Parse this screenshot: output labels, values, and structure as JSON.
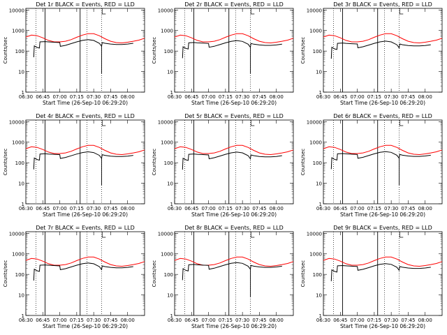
{
  "figure": {
    "title_template": "Det {n}r BLACK = Events, RED = LLD",
    "detectors": [
      "1",
      "2",
      "3",
      "4",
      "5",
      "6",
      "7",
      "8",
      "9"
    ],
    "xlabel": "Start Time (26-Sep-10 06:29:20)",
    "ylabel": "Counts/sec"
  },
  "chart_data": {
    "type": "line",
    "panels": 9,
    "title_template": "Det {n}r BLACK = Events, RED = LLD",
    "xlabel": "Start Time (26-Sep-10 06:29:20)",
    "ylabel": "Counts/sec",
    "yscale": "log",
    "ylim": [
      1,
      12000
    ],
    "xlim": [
      0,
      105
    ],
    "x_units": "minutes after 06:30",
    "xticks": [
      0,
      15,
      30,
      45,
      60,
      75,
      90
    ],
    "xtick_labels": [
      "06:30",
      "06:45",
      "07:00",
      "07:15",
      "07:30",
      "07:45",
      "08:00"
    ],
    "yticks": [
      1,
      10,
      100,
      1000,
      10000
    ],
    "ytick_labels": [
      "1",
      "10",
      "100",
      "1000",
      "10000"
    ],
    "vlines_solid": [
      17,
      48
    ],
    "vlines_dotted": [
      9,
      54,
      67
    ],
    "series": [
      {
        "name": "LLD",
        "color": "#ff0000",
        "x": [
          0,
          5,
          10,
          15,
          20,
          25,
          30,
          35,
          40,
          45,
          50,
          55,
          60,
          65,
          70,
          75,
          80,
          85,
          90,
          95,
          100,
          105
        ],
        "values": [
          480,
          600,
          560,
          440,
          330,
          280,
          280,
          300,
          360,
          470,
          600,
          700,
          700,
          560,
          400,
          300,
          260,
          250,
          270,
          300,
          340,
          420
        ]
      },
      {
        "name": "Events",
        "color": "#000000",
        "x": [
          7,
          7.5,
          9,
          10,
          12,
          12.5,
          17,
          20,
          25,
          30,
          30.5,
          35,
          40,
          45,
          50,
          55,
          60,
          65,
          67,
          67.5,
          70,
          75,
          80,
          85,
          90,
          95
        ],
        "values": [
          50,
          180,
          160,
          150,
          140,
          280,
          290,
          280,
          270,
          260,
          170,
          190,
          230,
          280,
          330,
          360,
          330,
          240,
          170,
          260,
          240,
          220,
          210,
          210,
          220,
          240
        ]
      }
    ]
  }
}
